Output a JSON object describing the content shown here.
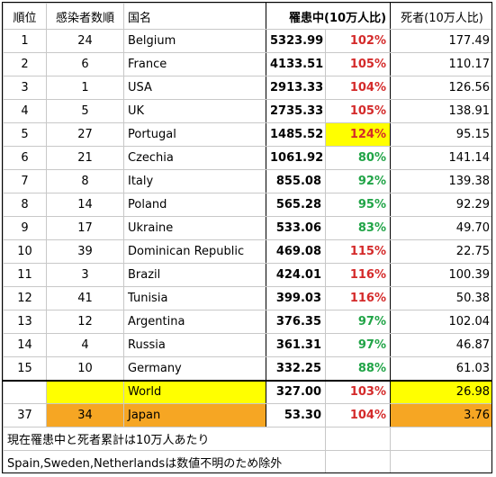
{
  "headers": {
    "rank": "順位",
    "infection_order": "感染者数順",
    "country": "国名",
    "active": "罹患中(10万人比)",
    "deaths": "死者(10万人比)"
  },
  "rows": [
    {
      "rank": "1",
      "order": "24",
      "country": "Belgium",
      "active": "5323.99",
      "ratio": "102%",
      "ratio_color": "red",
      "deaths": "177.49"
    },
    {
      "rank": "2",
      "order": "6",
      "country": "France",
      "active": "4133.51",
      "ratio": "105%",
      "ratio_color": "red",
      "deaths": "110.17"
    },
    {
      "rank": "3",
      "order": "1",
      "country": "USA",
      "active": "2913.33",
      "ratio": "104%",
      "ratio_color": "red",
      "deaths": "126.56"
    },
    {
      "rank": "4",
      "order": "5",
      "country": "UK",
      "active": "2735.33",
      "ratio": "105%",
      "ratio_color": "red",
      "deaths": "138.91"
    },
    {
      "rank": "5",
      "order": "27",
      "country": "Portugal",
      "active": "1485.52",
      "ratio": "124%",
      "ratio_color": "red",
      "deaths": "95.15"
    },
    {
      "rank": "6",
      "order": "21",
      "country": "Czechia",
      "active": "1061.92",
      "ratio": "80%",
      "ratio_color": "green",
      "deaths": "141.14"
    },
    {
      "rank": "7",
      "order": "8",
      "country": "Italy",
      "active": "855.08",
      "ratio": "92%",
      "ratio_color": "green",
      "deaths": "139.38"
    },
    {
      "rank": "8",
      "order": "14",
      "country": "Poland",
      "active": "565.28",
      "ratio": "95%",
      "ratio_color": "green",
      "deaths": "92.29"
    },
    {
      "rank": "9",
      "order": "17",
      "country": "Ukraine",
      "active": "533.06",
      "ratio": "83%",
      "ratio_color": "green",
      "deaths": "49.70"
    },
    {
      "rank": "10",
      "order": "39",
      "country": "Dominican Republic",
      "active": "469.08",
      "ratio": "115%",
      "ratio_color": "red",
      "deaths": "22.75"
    },
    {
      "rank": "11",
      "order": "3",
      "country": "Brazil",
      "active": "424.01",
      "ratio": "116%",
      "ratio_color": "red",
      "deaths": "100.39"
    },
    {
      "rank": "12",
      "order": "41",
      "country": "Tunisia",
      "active": "399.03",
      "ratio": "116%",
      "ratio_color": "red",
      "deaths": "50.38"
    },
    {
      "rank": "13",
      "order": "12",
      "country": "Argentina",
      "active": "376.35",
      "ratio": "97%",
      "ratio_color": "green",
      "deaths": "102.04"
    },
    {
      "rank": "14",
      "order": "4",
      "country": "Russia",
      "active": "361.31",
      "ratio": "97%",
      "ratio_color": "green",
      "deaths": "46.87"
    },
    {
      "rank": "15",
      "order": "10",
      "country": "Germany",
      "active": "332.25",
      "ratio": "88%",
      "ratio_color": "green",
      "deaths": "61.03"
    }
  ],
  "world": {
    "rank": "",
    "order": "",
    "country": "World",
    "active": "327.00",
    "ratio": "103%",
    "deaths": "26.98"
  },
  "japan": {
    "rank": "37",
    "order": "34",
    "country": "Japan",
    "active": "53.30",
    "ratio": "104%",
    "deaths": "3.76"
  },
  "notes": [
    "現在罹患中と死者累計は10万人あたり",
    "Spain,Sweden,Netherlandsは数値不明のため除外"
  ],
  "colors": {
    "red_text": "#d42a2a",
    "green_text": "#21a447",
    "highlight_yellow": "#ffff00",
    "highlight_orange": "#f6a623"
  }
}
